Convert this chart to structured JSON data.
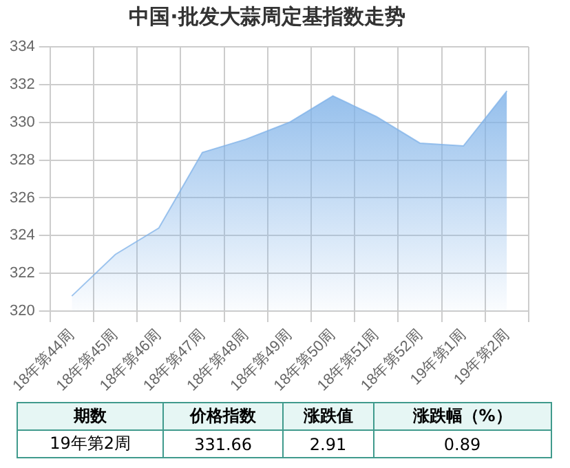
{
  "chart_data": {
    "type": "area",
    "title": "中国·批发大蒜周定基指数走势",
    "categories": [
      "18年第44周",
      "18年第45周",
      "18年第46周",
      "18年第47周",
      "18年第48周",
      "18年第49周",
      "18年第50周",
      "18年第51周",
      "18年第52周",
      "19年第1周",
      "19年第2周"
    ],
    "series": [
      {
        "color": "#7fb2e8",
        "values": [
          320.8,
          323.0,
          324.4,
          328.4,
          329.1,
          330.0,
          331.4,
          330.3,
          328.9,
          328.75,
          331.66
        ]
      }
    ],
    "ylim": [
      320,
      334
    ],
    "yticks": [
      320,
      322,
      324,
      326,
      328,
      330,
      332,
      334
    ],
    "grid": true,
    "legend": false,
    "marker": "none",
    "annotations": [
      "期数",
      "价格指数",
      "涨跌值",
      "涨跌幅（%）",
      "19年第2周",
      "331.66",
      "2.91",
      "0.89"
    ]
  }
}
